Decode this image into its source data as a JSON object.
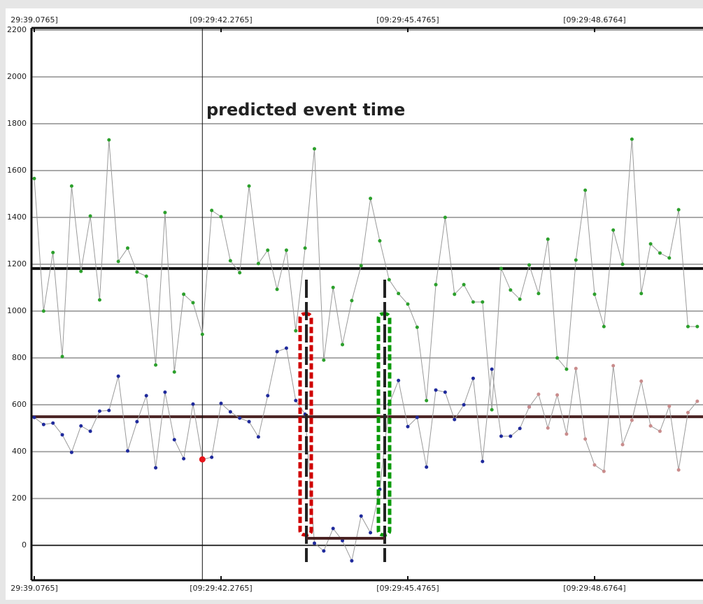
{
  "chart_data": {
    "type": "line",
    "annotation": "predicted event time",
    "event_x": 41.9565,
    "x": [
      39.0765,
      39.2365,
      39.3965,
      39.5565,
      39.7165,
      39.8765,
      40.0365,
      40.1965,
      40.3565,
      40.5165,
      40.6765,
      40.8365,
      40.9965,
      41.1565,
      41.3165,
      41.4765,
      41.6365,
      41.7965,
      41.9565,
      42.1165,
      42.2765,
      42.4365,
      42.5965,
      42.7565,
      42.9165,
      43.0765,
      43.2365,
      43.3965,
      43.5565,
      43.7165,
      43.8765,
      44.0365,
      44.1965,
      44.3565,
      44.5165,
      44.6765,
      44.8365,
      44.9965,
      45.1565,
      45.3165,
      45.4765,
      45.6365,
      45.7965,
      45.9565,
      46.1165,
      46.2765,
      46.4365,
      46.5965,
      46.7565,
      46.9165,
      47.0765,
      47.2365,
      47.3965,
      47.5565,
      47.7165,
      47.8765,
      48.0365,
      48.1965,
      48.3565,
      48.5165,
      48.6765,
      48.8365,
      48.9965,
      49.1565,
      49.3165,
      49.4765,
      49.6365,
      49.7965,
      49.9565,
      50.1165,
      50.2765,
      50.4365
    ],
    "series": [
      {
        "color": "#2ca02c",
        "values": [
          1566,
          1000,
          1250,
          806,
          1534,
          1170,
          1406,
          1048,
          1731,
          1212,
          1269,
          1167,
          1149,
          770,
          1421,
          740,
          1072,
          1036,
          901,
          1430,
          1403,
          1215,
          1164,
          1534,
          1203,
          1260,
          1093,
          1260,
          916,
          1269,
          1693,
          791,
          1101,
          857,
          1045,
          1194,
          1481,
          1300,
          1134,
          1075,
          1030,
          931,
          618,
          1113,
          1400,
          1072,
          1113,
          1039,
          1039,
          579,
          1182,
          1090,
          1051,
          1197,
          1075,
          1307,
          800,
          752,
          1218,
          1516,
          1072,
          934,
          1346,
          1200,
          1734,
          1075,
          1287,
          1248,
          1227,
          1433,
          934,
          934
        ]
      },
      {
        "color": "#1f2a9c",
        "values": [
          546,
          516,
          522,
          472,
          397,
          510,
          487,
          573,
          576,
          722,
          403,
          528,
          639,
          331,
          654,
          451,
          370,
          603,
          367,
          376,
          606,
          570,
          543,
          528,
          463,
          639,
          827,
          842,
          618,
          560,
          9,
          -24,
          72,
          20,
          -66,
          125,
          54,
          239,
          603,
          704,
          507,
          546,
          334,
          663,
          654,
          537,
          600,
          713,
          358,
          752,
          466,
          466,
          499,
          591,
          null,
          null,
          null,
          null,
          null,
          null,
          null,
          null,
          null,
          null,
          null,
          null,
          null,
          null,
          null,
          null,
          null,
          null
        ]
      },
      {
        "color": "#c98c8c",
        "values": [
          null,
          null,
          null,
          null,
          null,
          null,
          null,
          null,
          null,
          null,
          null,
          null,
          null,
          null,
          null,
          null,
          null,
          null,
          null,
          null,
          null,
          null,
          null,
          null,
          null,
          null,
          null,
          null,
          null,
          null,
          null,
          null,
          null,
          null,
          null,
          null,
          null,
          null,
          null,
          null,
          null,
          null,
          null,
          null,
          null,
          null,
          null,
          null,
          null,
          null,
          null,
          null,
          null,
          591,
          645,
          501,
          642,
          475,
          755,
          454,
          343,
          316,
          767,
          430,
          534,
          701,
          510,
          487,
          594,
          322,
          567,
          615
        ]
      },
      {
        "color": "#e8151b",
        "values": [
          null,
          null,
          null,
          null,
          null,
          null,
          null,
          null,
          null,
          null,
          null,
          null,
          null,
          null,
          null,
          null,
          null,
          null,
          367,
          null,
          null,
          null,
          null,
          null,
          null,
          null,
          null,
          null,
          null,
          null,
          null,
          null,
          null,
          null,
          null,
          null,
          null,
          null,
          null,
          null,
          null,
          null,
          null,
          null,
          null,
          null,
          null,
          null,
          null,
          null,
          null,
          null,
          null,
          null,
          null,
          null,
          null,
          null,
          null,
          null,
          null,
          null,
          null,
          null,
          null,
          null,
          null,
          null,
          null,
          null,
          null,
          null
        ]
      }
    ],
    "line_color": "#9a9a9a",
    "hlines": [
      {
        "value": 1182,
        "color": "#111111"
      },
      {
        "value": 549,
        "color": "#4a2323"
      }
    ],
    "xlim": [
      39.0286,
      50.5342
    ],
    "ylim": [
      -149,
      2200
    ],
    "xticks": [
      {
        "value": 39.0765,
        "label": "29:39.0765]"
      },
      {
        "value": 42.2765,
        "label": "[09:29:42.2765]"
      },
      {
        "value": 45.4765,
        "label": "[09:29:45.4765]"
      },
      {
        "value": 48.6764,
        "label": "[09:29:48.6764]"
      }
    ],
    "yticks": [
      0,
      200,
      400,
      600,
      800,
      1000,
      1200,
      1400,
      1600,
      1800,
      2000,
      2200
    ],
    "grid": true
  }
}
